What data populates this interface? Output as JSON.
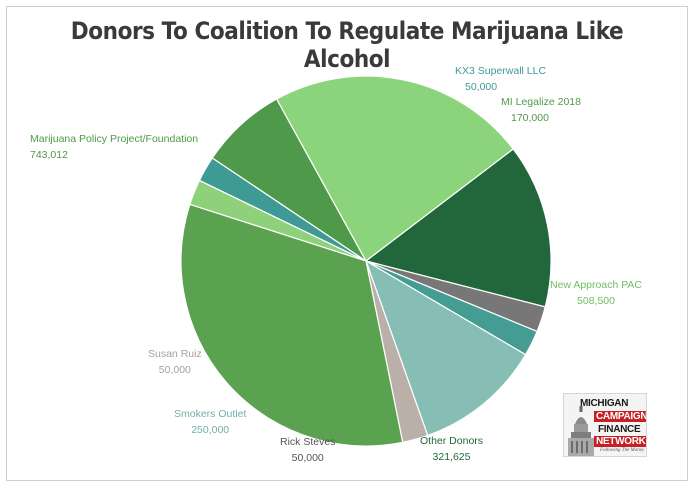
{
  "chart_data": {
    "type": "pie",
    "title": "Donors To Coalition To Regulate Marijuana Like Alcohol",
    "slices": [
      {
        "label": "",
        "value": 50000,
        "color": "#8fd17a",
        "label_color": "#5c9e4e",
        "show_label": false
      },
      {
        "label": "KX3 Superwall LLC",
        "value": 50000,
        "color": "#3f9a95",
        "label_color": "#3f9a95",
        "show_label": true
      },
      {
        "label": "MI Legalize 2018",
        "value": 170000,
        "color": "#4f9a4a",
        "label_color": "#4f9a4a",
        "show_label": true
      },
      {
        "label": "New Approach PAC",
        "value": 508500,
        "color": "#8cd47b",
        "label_color": "#6fbf62",
        "show_label": true
      },
      {
        "label": "Other Donors",
        "value": 321625,
        "color": "#22673c",
        "label_color": "#22673c",
        "show_label": true
      },
      {
        "label": "",
        "value": 50000,
        "color": "#777777",
        "label_color": "#777777",
        "show_label": false
      },
      {
        "label": "Rick Steves",
        "value": 50000,
        "color": "#459c92",
        "label_color": "#555555",
        "show_label": true
      },
      {
        "label": "Smokers Outlet",
        "value": 250000,
        "color": "#86bdb5",
        "label_color": "#6fb0a8",
        "show_label": true
      },
      {
        "label": "Susan Ruiz",
        "value": 50000,
        "color": "#bbb0a9",
        "label_color": "#a8a09a",
        "show_label": true
      },
      {
        "label": "Marijuana Policy Project/Foundation",
        "value": 743012,
        "color": "#5aa150",
        "label_color": "#4e9a46",
        "show_label": true
      }
    ],
    "value_labels": [
      "50,000",
      "170,000",
      "508,500",
      "321,625",
      "50,000",
      "250,000",
      "50,000",
      "743,012"
    ],
    "legend": "none"
  },
  "logo": {
    "line1": "MICHIGAN",
    "line2": "CAMPAIGN",
    "line3": "FINANCE",
    "line4": "NETWORK",
    "tagline": "Following The Money"
  }
}
